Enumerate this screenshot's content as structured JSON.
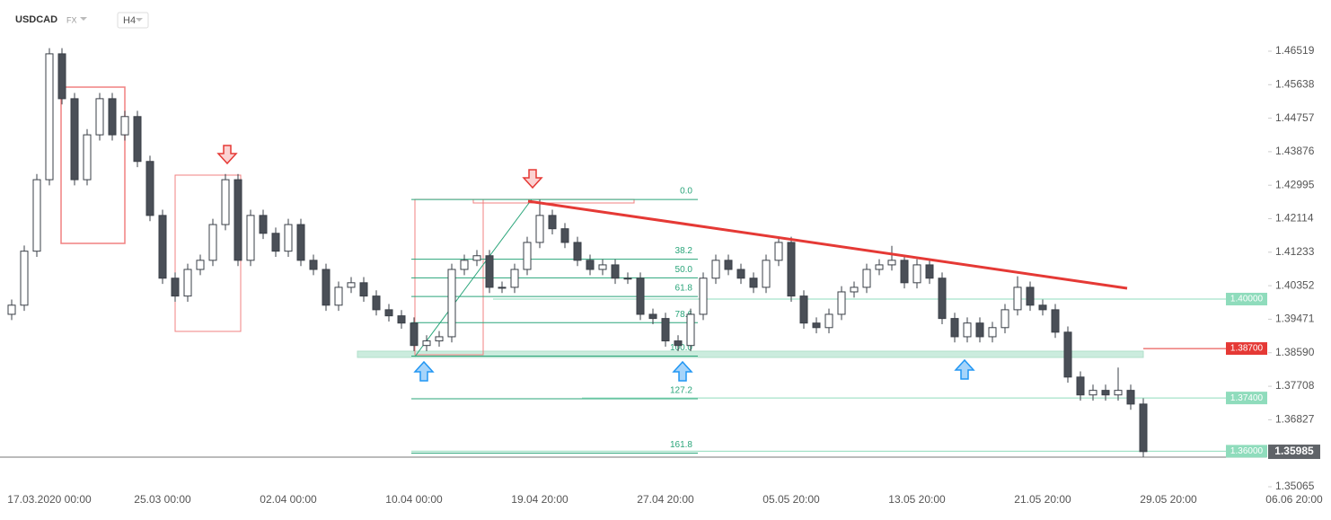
{
  "chart_data": {
    "type": "candlestick",
    "title": "USDCAD",
    "market": "FX",
    "interval": "H4",
    "up_color": "#ffffff",
    "down_color": "#4a4f57",
    "categories": [
      null,
      null,
      null,
      "17.03.2020 00:00",
      null,
      null,
      null,
      null,
      null,
      null,
      null,
      null,
      "25.03 00:00",
      null,
      null,
      null,
      null,
      null,
      null,
      null,
      null,
      null,
      "02.04 00:00",
      null,
      null,
      null,
      null,
      null,
      null,
      null,
      null,
      null,
      "10.04 00:00",
      null,
      null,
      null,
      null,
      null,
      null,
      null,
      null,
      null,
      "19.04 20:00",
      null,
      null,
      null,
      null,
      null,
      null,
      null,
      null,
      null,
      "27.04 20:00",
      null,
      null,
      null,
      null,
      null,
      null,
      null,
      null,
      null,
      "05.05 20:00",
      null,
      null,
      null,
      null,
      null,
      null,
      null,
      null,
      null,
      "13.05 20:00",
      null,
      null,
      null,
      null,
      null,
      null,
      null,
      null,
      null,
      "21.05 20:00",
      null,
      null,
      null,
      null,
      null,
      null,
      null,
      null,
      null,
      "29.05 20:00",
      null,
      null,
      null,
      null,
      null,
      null,
      null,
      null,
      null,
      "06.06 20:00"
    ],
    "ohlc": [
      [
        1.396,
        1.3999,
        1.3945,
        1.3984
      ],
      [
        1.3984,
        1.4141,
        1.3969,
        1.4126
      ],
      [
        1.4126,
        1.4329,
        1.4111,
        1.4314
      ],
      [
        1.4314,
        1.466,
        1.4299,
        1.4645
      ],
      [
        1.4645,
        1.466,
        1.4512,
        1.4527
      ],
      [
        1.4527,
        1.4542,
        1.4299,
        1.4314
      ],
      [
        1.4314,
        1.4447,
        1.4299,
        1.4432
      ],
      [
        1.4432,
        1.4542,
        1.4417,
        1.4527
      ],
      [
        1.4527,
        1.4542,
        1.4417,
        1.4432
      ],
      [
        1.4432,
        1.4495,
        1.4417,
        1.448
      ],
      [
        1.448,
        1.4495,
        1.4347,
        1.4362
      ],
      [
        1.4362,
        1.4377,
        1.4205,
        1.422
      ],
      [
        1.422,
        1.4235,
        1.404,
        1.4055
      ],
      [
        1.4055,
        1.407,
        1.3993,
        1.4008
      ],
      [
        1.4008,
        1.4093,
        1.3993,
        1.4078
      ],
      [
        1.4078,
        1.4117,
        1.4063,
        1.4102
      ],
      [
        1.4102,
        1.4211,
        1.4087,
        1.4196
      ],
      [
        1.4196,
        1.4329,
        1.4181,
        1.4314
      ],
      [
        1.4314,
        1.4329,
        1.4087,
        1.4102
      ],
      [
        1.4102,
        1.4235,
        1.4087,
        1.422
      ],
      [
        1.422,
        1.4235,
        1.4158,
        1.4173
      ],
      [
        1.4173,
        1.4188,
        1.4111,
        1.4126
      ],
      [
        1.4126,
        1.4211,
        1.4111,
        1.4196
      ],
      [
        1.4196,
        1.4211,
        1.4087,
        1.4102
      ],
      [
        1.4102,
        1.4117,
        1.4063,
        1.4078
      ],
      [
        1.4078,
        1.4093,
        1.3969,
        1.3984
      ],
      [
        1.3984,
        1.4046,
        1.3969,
        1.4031
      ],
      [
        1.4031,
        1.4058,
        1.4016,
        1.4043
      ],
      [
        1.4043,
        1.4058,
        1.3993,
        1.4008
      ],
      [
        1.4008,
        1.4023,
        1.3957,
        1.3972
      ],
      [
        1.3972,
        1.3987,
        1.3941,
        1.3956
      ],
      [
        1.3956,
        1.3971,
        1.3922,
        1.3937
      ],
      [
        1.3937,
        1.3952,
        1.3863,
        1.3878
      ],
      [
        1.3878,
        1.3905,
        1.3863,
        1.389
      ],
      [
        1.389,
        1.3916,
        1.3875,
        1.3901
      ],
      [
        1.3901,
        1.4093,
        1.3886,
        1.4078
      ],
      [
        1.4078,
        1.4117,
        1.4063,
        1.4102
      ],
      [
        1.4102,
        1.4129,
        1.4087,
        1.4114
      ],
      [
        1.4114,
        1.4129,
        1.4016,
        1.4031
      ],
      [
        1.4031,
        1.4046,
        1.4016,
        1.4031
      ],
      [
        1.4031,
        1.4093,
        1.4016,
        1.4078
      ],
      [
        1.4078,
        1.4164,
        1.4063,
        1.4149
      ],
      [
        1.4149,
        1.4262,
        1.4134,
        1.422
      ],
      [
        1.422,
        1.4235,
        1.417,
        1.4185
      ],
      [
        1.4185,
        1.42,
        1.4134,
        1.4149
      ],
      [
        1.4149,
        1.4164,
        1.4087,
        1.4102
      ],
      [
        1.4102,
        1.4117,
        1.4063,
        1.4078
      ],
      [
        1.4078,
        1.4105,
        1.4063,
        1.409
      ],
      [
        1.409,
        1.4105,
        1.404,
        1.4055
      ],
      [
        1.4055,
        1.407,
        1.404,
        1.4055
      ],
      [
        1.4055,
        1.407,
        1.3945,
        1.396
      ],
      [
        1.396,
        1.3975,
        1.3934,
        1.3949
      ],
      [
        1.3949,
        1.3964,
        1.3875,
        1.389
      ],
      [
        1.389,
        1.3905,
        1.3863,
        1.3878
      ],
      [
        1.3878,
        1.3975,
        1.3863,
        1.396
      ],
      [
        1.396,
        1.407,
        1.3945,
        1.4055
      ],
      [
        1.4055,
        1.4117,
        1.404,
        1.4102
      ],
      [
        1.4102,
        1.4117,
        1.4063,
        1.4078
      ],
      [
        1.4078,
        1.4093,
        1.404,
        1.4055
      ],
      [
        1.4055,
        1.407,
        1.4016,
        1.4031
      ],
      [
        1.4031,
        1.4117,
        1.4016,
        1.4102
      ],
      [
        1.4102,
        1.4164,
        1.4087,
        1.4149
      ],
      [
        1.4149,
        1.4164,
        1.3993,
        1.4008
      ],
      [
        1.4008,
        1.4023,
        1.3922,
        1.3937
      ],
      [
        1.3937,
        1.3952,
        1.391,
        1.3925
      ],
      [
        1.3925,
        1.3975,
        1.391,
        1.396
      ],
      [
        1.396,
        1.4034,
        1.3945,
        1.4019
      ],
      [
        1.4019,
        1.4046,
        1.4004,
        1.4031
      ],
      [
        1.4031,
        1.4093,
        1.4016,
        1.4078
      ],
      [
        1.4078,
        1.4105,
        1.4063,
        1.409
      ],
      [
        1.409,
        1.414,
        1.4075,
        1.4102
      ],
      [
        1.4102,
        1.4117,
        1.4028,
        1.4043
      ],
      [
        1.4043,
        1.4105,
        1.4028,
        1.409
      ],
      [
        1.409,
        1.4105,
        1.404,
        1.4055
      ],
      [
        1.4055,
        1.407,
        1.3934,
        1.3949
      ],
      [
        1.3949,
        1.3964,
        1.3886,
        1.3901
      ],
      [
        1.3901,
        1.3952,
        1.3886,
        1.3937
      ],
      [
        1.3937,
        1.3952,
        1.3886,
        1.3901
      ],
      [
        1.3901,
        1.394,
        1.3886,
        1.3925
      ],
      [
        1.3925,
        1.3987,
        1.391,
        1.3972
      ],
      [
        1.3972,
        1.406,
        1.3957,
        1.4031
      ],
      [
        1.4031,
        1.4046,
        1.3969,
        1.3984
      ],
      [
        1.3984,
        1.3999,
        1.3957,
        1.3972
      ],
      [
        1.3972,
        1.3987,
        1.3898,
        1.3913
      ],
      [
        1.3913,
        1.3928,
        1.378,
        1.3795
      ],
      [
        1.3795,
        1.381,
        1.3733,
        1.3748
      ],
      [
        1.3748,
        1.3775,
        1.3733,
        1.376
      ],
      [
        1.376,
        1.3775,
        1.3733,
        1.3748
      ],
      [
        1.3748,
        1.382,
        1.3733,
        1.376
      ],
      [
        1.376,
        1.3775,
        1.3709,
        1.3724
      ],
      [
        1.3724,
        1.3739,
        1.3585,
        1.3599
      ],
      null,
      null,
      null,
      null,
      null,
      null,
      null,
      null,
      null,
      null,
      null,
      null
    ],
    "ylim": [
      1.34923,
      1.47629
    ],
    "yticks": [
      1.46519,
      1.45638,
      1.44757,
      1.43876,
      1.42995,
      1.42114,
      1.41233,
      1.40352,
      1.39471,
      {
        "value": 1.3859,
        "label": "1.38590"
      },
      1.37708,
      1.36827,
      1.35065
    ],
    "levels": [
      {
        "value": 1.4,
        "label": "1.40000",
        "color": "#8fdcbc"
      },
      {
        "value": 1.387,
        "label": "1.38700",
        "color": "#e53935"
      },
      {
        "value": 1.374,
        "label": "1.37400",
        "color": "#8fdcbc"
      },
      {
        "value": 1.36,
        "label": "1.36000",
        "color": "#8fdcbc"
      }
    ],
    "last_price": 1.35985,
    "fib_levels": [
      {
        "ratio": {
          "value": 0,
          "label": "0.0"
        },
        "price": 1.4262
      },
      {
        "ratio": 38.2,
        "price": 1.4105
      },
      {
        "ratio": {
          "value": 50,
          "label": "50.0"
        },
        "price": 1.4056
      },
      {
        "ratio": 61.8,
        "price": 1.4007
      },
      {
        "ratio": 78.6,
        "price": 1.3938
      },
      {
        "ratio": {
          "value": 100,
          "label": "100.0"
        },
        "price": 1.385
      },
      {
        "ratio": 127.2,
        "price": 1.3738
      },
      {
        "ratio": 161.8,
        "price": 1.3595
      }
    ],
    "fib_color": "#2aa57a"
  }
}
